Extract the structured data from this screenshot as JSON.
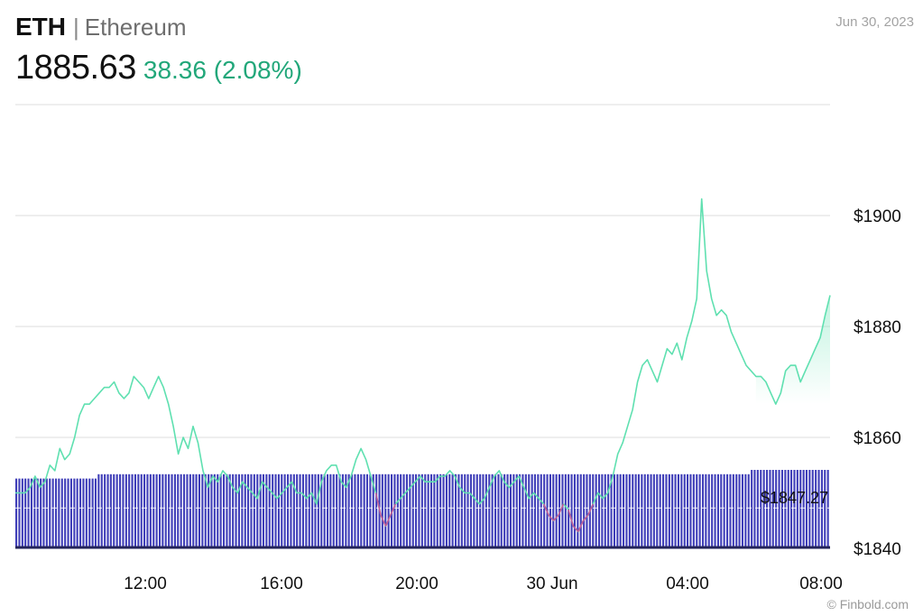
{
  "header": {
    "symbol": "ETH",
    "separator": "|",
    "name": "Ethereum",
    "price": "1885.63",
    "change": "38.36 (2.08%)",
    "date": "Jun 30, 2023"
  },
  "footer": {
    "credit": "© Finbold.com"
  },
  "colors": {
    "line": "#5fe0b0",
    "line_down": "#c45a9a",
    "area_top": "#8eeac6",
    "volume": "#3f3eb8",
    "grid": "#dddddd",
    "change": "#22a77a"
  },
  "chart_data": {
    "type": "line",
    "x_ticks": [
      "12:00",
      "16:00",
      "20:00",
      "30 Jun",
      "04:00",
      "08:00"
    ],
    "y_ticks": [
      "$1840",
      "$1860",
      "$1880",
      "$1900"
    ],
    "ylim": [
      1840,
      1920
    ],
    "grid": true,
    "series": [
      {
        "values": [
          1850,
          1850,
          1850,
          1851,
          1853,
          1851,
          1852,
          1855,
          1854,
          1858,
          1856,
          1857,
          1860,
          1864,
          1866,
          1866,
          1867,
          1868,
          1869,
          1869,
          1870,
          1868,
          1867,
          1868,
          1871,
          1870,
          1869,
          1867,
          1869,
          1871,
          1869,
          1866,
          1862,
          1857,
          1860,
          1858,
          1862,
          1859,
          1854,
          1851,
          1853,
          1852,
          1854,
          1853,
          1851,
          1850,
          1852,
          1851,
          1850,
          1849,
          1852,
          1851,
          1850,
          1849,
          1850,
          1851,
          1852,
          1850,
          1850,
          1849,
          1850,
          1848,
          1852,
          1854,
          1855,
          1855,
          1852,
          1851,
          1853,
          1856,
          1858,
          1856,
          1853,
          1850,
          1846,
          1844,
          1846,
          1848,
          1849,
          1850,
          1851,
          1852,
          1853,
          1852,
          1852,
          1852,
          1853,
          1853,
          1854,
          1853,
          1851,
          1850,
          1850,
          1849,
          1848,
          1849,
          1851,
          1853,
          1854,
          1852,
          1851,
          1852,
          1853,
          1851,
          1849,
          1850,
          1849,
          1848,
          1846,
          1845,
          1846,
          1848,
          1847,
          1844,
          1843,
          1845,
          1846,
          1848,
          1850,
          1849,
          1850,
          1853,
          1857,
          1859,
          1862,
          1865,
          1870,
          1873,
          1874,
          1872,
          1870,
          1873,
          1876,
          1875,
          1877,
          1874,
          1878,
          1881,
          1885,
          1903,
          1890,
          1885,
          1882,
          1883,
          1882,
          1879,
          1877,
          1875,
          1873,
          1872,
          1871,
          1871,
          1870,
          1868,
          1866,
          1868,
          1872,
          1873,
          1873,
          1870,
          1872,
          1874,
          1876,
          1878,
          1882,
          1885.63
        ]
      }
    ],
    "volume": {
      "values": [
        3,
        3,
        3,
        3,
        3,
        3,
        3,
        3,
        3,
        3,
        3,
        3,
        3,
        3,
        3,
        3,
        3,
        3,
        3,
        3,
        3,
        3,
        3,
        3,
        3,
        3,
        3,
        4,
        4,
        4,
        4,
        4,
        4,
        4,
        4,
        4,
        4,
        4,
        4,
        4,
        4,
        4,
        4,
        4,
        4,
        4,
        4,
        4,
        4,
        4,
        4,
        4,
        4,
        4,
        4,
        4,
        4,
        4,
        4,
        4,
        4,
        4,
        4,
        4,
        4,
        4,
        4,
        4,
        4,
        4,
        4,
        4,
        4,
        4,
        4,
        4,
        4,
        4,
        4,
        4,
        4,
        4,
        4,
        4,
        4,
        4,
        4,
        4,
        4,
        4,
        4,
        4,
        4,
        4,
        4,
        4,
        4,
        4,
        4,
        4,
        4,
        4,
        4,
        4,
        4,
        4,
        4,
        4,
        4,
        4,
        4,
        4,
        4,
        4,
        4,
        4,
        4,
        4,
        4,
        4,
        4,
        4,
        4,
        4,
        4,
        4,
        4,
        4,
        4,
        4,
        4,
        4,
        4,
        4,
        4,
        4,
        4,
        4,
        4,
        4,
        4,
        4,
        4,
        4,
        4,
        4,
        4,
        4,
        4,
        4,
        4,
        4,
        4,
        4,
        4,
        4,
        4,
        4,
        4,
        4,
        4,
        4,
        4,
        4,
        4,
        4,
        4,
        4,
        4,
        4,
        4,
        4,
        4,
        4,
        4,
        4,
        4,
        4,
        4,
        4,
        4,
        4,
        4,
        4,
        4,
        4,
        4,
        4,
        4,
        4,
        4,
        4,
        4,
        4,
        4,
        4,
        4,
        4,
        4,
        4,
        4,
        4,
        4,
        4,
        4,
        4,
        4,
        4,
        4,
        4,
        4,
        4,
        4,
        4,
        4,
        4,
        4,
        4,
        4,
        4,
        4,
        4,
        4,
        4,
        4,
        4,
        4,
        4,
        4,
        4,
        4,
        4,
        4,
        4,
        4,
        4,
        4,
        4,
        4,
        4,
        4,
        5,
        5,
        5,
        5,
        5,
        5,
        5,
        5,
        5,
        5,
        5,
        5,
        5,
        5,
        5,
        5,
        5,
        5,
        5,
        5,
        5,
        5,
        5,
        5,
        5,
        5
      ]
    },
    "reference_line": {
      "value": 1847.27,
      "label": "$1847.27"
    }
  }
}
